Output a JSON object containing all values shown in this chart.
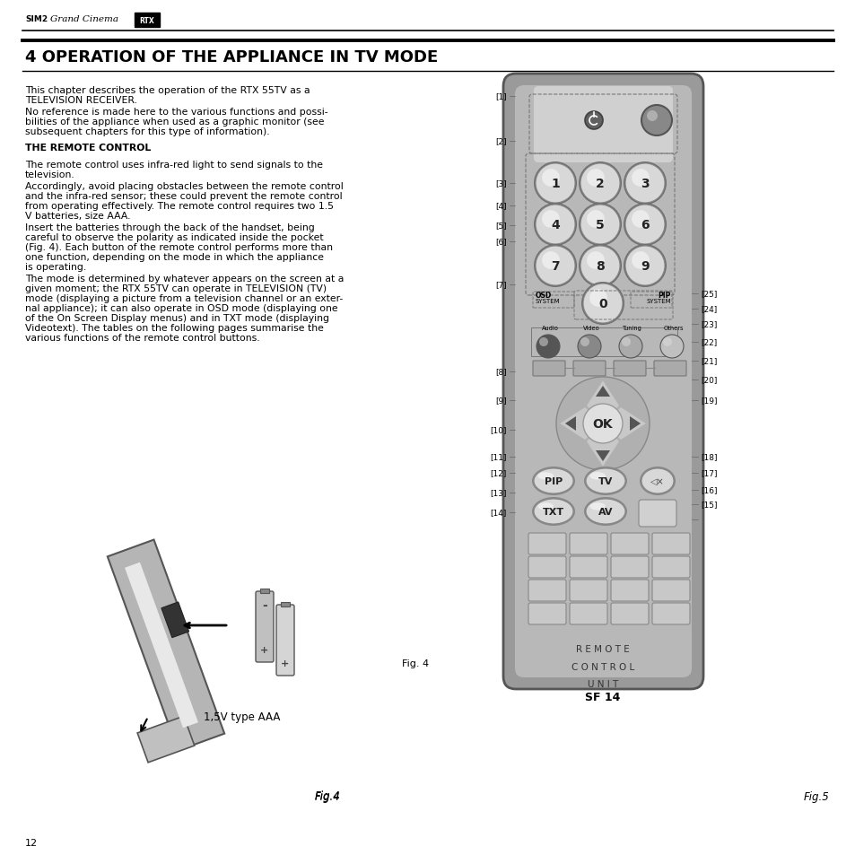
{
  "bg_color": "#ffffff",
  "page_width": 9.54,
  "page_height": 9.54,
  "section_title": "4 OPERATION OF THE APPLIANCE IN TV MODE",
  "body_para1": "This chapter describes the operation of the RTX 55TV as a\nTELEVISION RECEIVER.",
  "body_para2": "No reference is made here to the various functions and possi-\nbilities of the appliance when used as a graphic monitor (see\nsubsequent chapters for this type of information).",
  "body_subhead": "THE REMOTE CONTROL",
  "body_para3": "The remote control uses infra-red light to send signals to the\ntelevision.",
  "body_para4": "Accordingly, avoid placing obstacles between the remote control\nand the infra-red sensor; these could prevent the remote control\nfrom operating effectively. The remote control requires two 1.5\nV batteries, size AAA.",
  "body_para5": "Insert the batteries through the back of the handset, being\ncareful to observe the polarity as indicated inside the pocket\n(Fig. 4). Each button of the remote control performs more than\none function, depending on the mode in which the appliance\nis operating.",
  "body_para6": "The mode is determined by whatever appears on the screen at a\ngiven moment; the RTX 55TV can operate in TELEVISION (TV)\nmode (displaying a picture from a television channel or an exter-\nnal appliance); it can also operate in OSD mode (displaying one\nof the On Screen Display menus) and in TXT mode (displaying\nVideotext). The tables on the following pages summarise the\nvarious functions of the remote control buttons.",
  "fig4_bottom_label": "1,5V type AAA",
  "fig4_caption": "Fig.4",
  "fig5_caption": "Fig.5",
  "fig4_side": "Fig. 4",
  "page_number": "12",
  "left_labels": [
    "[1]",
    "[2]",
    "[3]",
    "[4]",
    "[5]",
    "[6]",
    "[7]",
    "[8]",
    "[9]",
    "[10]",
    "[11]",
    "[12]",
    "[13]",
    "[14]"
  ],
  "right_labels": [
    "[25]",
    "[24]",
    "[23]",
    "[22]",
    "[21]",
    "[20]",
    "[19]",
    "[18]",
    "[17]",
    "[16]",
    "[15]"
  ],
  "remote_bottom_text": "R E M O T E\nC O N T R O L\nU N I T",
  "remote_sf": "SF 14",
  "remote_body_color": "#a8a8a8",
  "remote_inner_color": "#bcbcbc",
  "remote_btn_light": "#e0e0e0",
  "remote_btn_dark": "#c8c8c8"
}
